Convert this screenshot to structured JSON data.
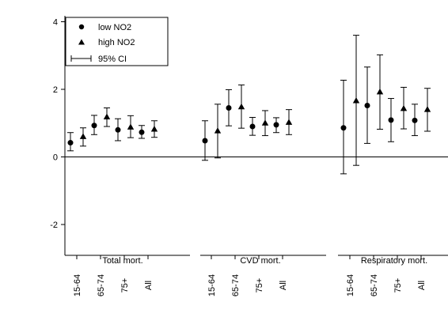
{
  "chart_data": {
    "type": "scatter",
    "title": "",
    "xlabel": "",
    "ylabel": "",
    "ylim": [
      -3.1,
      4.3
    ],
    "yticks": [
      -2,
      0,
      2,
      4
    ],
    "reference_line_y": 0,
    "grid": false,
    "legend_position": "top-left",
    "legend": {
      "low": "low NO2",
      "high": "high NO2",
      "ci": "95% CI"
    },
    "groups": [
      {
        "label": "Total mort.",
        "categories": [
          "15-64",
          "65-74",
          "75+",
          "All"
        ],
        "low": [
          {
            "y": 0.42,
            "lo": 0.18,
            "hi": 0.72
          },
          {
            "y": 0.93,
            "lo": 0.66,
            "hi": 1.23
          },
          {
            "y": 0.8,
            "lo": 0.48,
            "hi": 1.13
          },
          {
            "y": 0.73,
            "lo": 0.55,
            "hi": 0.93
          }
        ],
        "high": [
          {
            "y": 0.6,
            "lo": 0.32,
            "hi": 0.86
          },
          {
            "y": 1.18,
            "lo": 0.9,
            "hi": 1.45
          },
          {
            "y": 0.88,
            "lo": 0.57,
            "hi": 1.22
          },
          {
            "y": 0.82,
            "lo": 0.58,
            "hi": 1.07
          }
        ]
      },
      {
        "label": "CVD mort.",
        "categories": [
          "15-64",
          "65-74",
          "75+",
          "All"
        ],
        "low": [
          {
            "y": 0.48,
            "lo": -0.1,
            "hi": 1.07
          },
          {
            "y": 1.45,
            "lo": 0.92,
            "hi": 1.99
          },
          {
            "y": 0.9,
            "lo": 0.64,
            "hi": 1.17
          },
          {
            "y": 0.95,
            "lo": 0.72,
            "hi": 1.16
          }
        ],
        "high": [
          {
            "y": 0.77,
            "lo": -0.03,
            "hi": 1.56
          },
          {
            "y": 1.48,
            "lo": 0.85,
            "hi": 2.13
          },
          {
            "y": 1.0,
            "lo": 0.63,
            "hi": 1.37
          },
          {
            "y": 1.02,
            "lo": 0.66,
            "hi": 1.4
          }
        ]
      },
      {
        "label": "Respiratory mort.",
        "categories": [
          "15-64",
          "65-74",
          "75+",
          "All"
        ],
        "low": [
          {
            "y": 0.86,
            "lo": -0.5,
            "hi": 2.27
          },
          {
            "y": 1.52,
            "lo": 0.4,
            "hi": 2.66
          },
          {
            "y": 1.09,
            "lo": 0.45,
            "hi": 1.73
          },
          {
            "y": 1.08,
            "lo": 0.63,
            "hi": 1.56
          }
        ],
        "high": [
          {
            "y": 1.66,
            "lo": -0.25,
            "hi": 3.6
          },
          {
            "y": 1.92,
            "lo": 0.82,
            "hi": 3.02
          },
          {
            "y": 1.43,
            "lo": 0.83,
            "hi": 2.06
          },
          {
            "y": 1.4,
            "lo": 0.76,
            "hi": 2.03
          }
        ]
      }
    ]
  }
}
